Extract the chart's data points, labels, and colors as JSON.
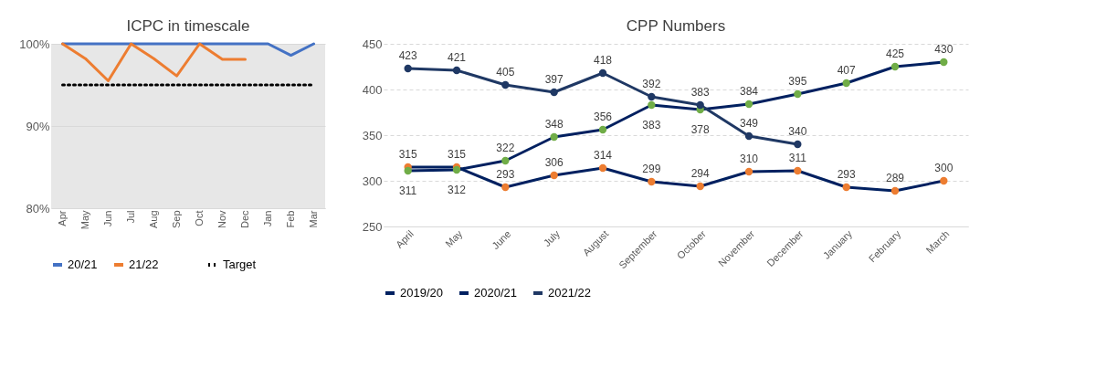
{
  "chart_data": [
    {
      "type": "line",
      "title": "ICPC in timescale",
      "categories": [
        "Apr",
        "May",
        "Jun",
        "Jul",
        "Aug",
        "Sep",
        "Oct",
        "Nov",
        "Dec",
        "Jan",
        "Feb",
        "Mar"
      ],
      "series": [
        {
          "name": "20/21",
          "color": "#4472c4",
          "values": [
            100,
            100,
            100,
            100,
            100,
            100,
            100,
            100,
            100,
            100,
            98.6,
            100
          ]
        },
        {
          "name": "21/22",
          "color": "#ed7d31",
          "values": [
            100,
            98.2,
            95.5,
            100,
            98.2,
            96.1,
            100,
            98.1,
            98.1,
            null,
            null,
            null
          ]
        }
      ],
      "ref_lines": [
        {
          "axis": "y",
          "value": 95,
          "label": "Target",
          "color": "#000000",
          "line_style": "dotted"
        }
      ],
      "ylim": [
        80,
        100
      ],
      "yticks": [
        {
          "value": 80,
          "label": "80%"
        },
        {
          "value": 90,
          "label": "90%"
        },
        {
          "value": 100,
          "label": "100%"
        }
      ],
      "grid": "y",
      "legend": "bottom",
      "marker": "none",
      "line_style": "solid"
    },
    {
      "type": "line",
      "title": "CPP Numbers",
      "categories": [
        "April",
        "May",
        "June",
        "July",
        "August",
        "September",
        "October",
        "November",
        "December",
        "January",
        "February",
        "March"
      ],
      "series": [
        {
          "name": "2019/20",
          "color": "#002060",
          "colors": [
            "#ed7d31",
            "#ed7d31",
            "#ed7d31",
            "#ed7d31",
            "#ed7d31",
            "#ed7d31",
            "#ed7d31",
            "#ed7d31",
            "#ed7d31",
            "#ed7d31",
            "#ed7d31",
            "#ed7d31"
          ],
          "values": [
            315,
            315,
            293,
            306,
            314,
            299,
            294,
            310,
            311,
            293,
            289,
            300
          ]
        },
        {
          "name": "2020/21",
          "color": "#002060",
          "colors": [
            "#70ad47",
            "#70ad47",
            "#70ad47",
            "#70ad47",
            "#70ad47",
            "#70ad47",
            "#70ad47",
            "#70ad47",
            "#70ad47",
            "#70ad47",
            "#70ad47",
            "#70ad47"
          ],
          "values": [
            311,
            312,
            322,
            348,
            356,
            383,
            378,
            384,
            395,
            407,
            425,
            430
          ]
        },
        {
          "name": "2021/22",
          "color": "#1f3864",
          "colors": [
            "#1f3864",
            "#1f3864",
            "#1f3864",
            "#1f3864",
            "#1f3864",
            "#1f3864",
            "#1f3864",
            "#1f3864",
            "#1f3864",
            null,
            null,
            null
          ],
          "values": [
            423,
            421,
            405,
            397,
            418,
            392,
            383,
            349,
            340,
            null,
            null,
            null
          ]
        }
      ],
      "ylim": [
        250,
        450
      ],
      "yticks": [
        250,
        300,
        350,
        400,
        450
      ],
      "grid": "y",
      "legend": "bottom",
      "marker": "circle",
      "line_style": "solid",
      "data_labels": true
    }
  ]
}
